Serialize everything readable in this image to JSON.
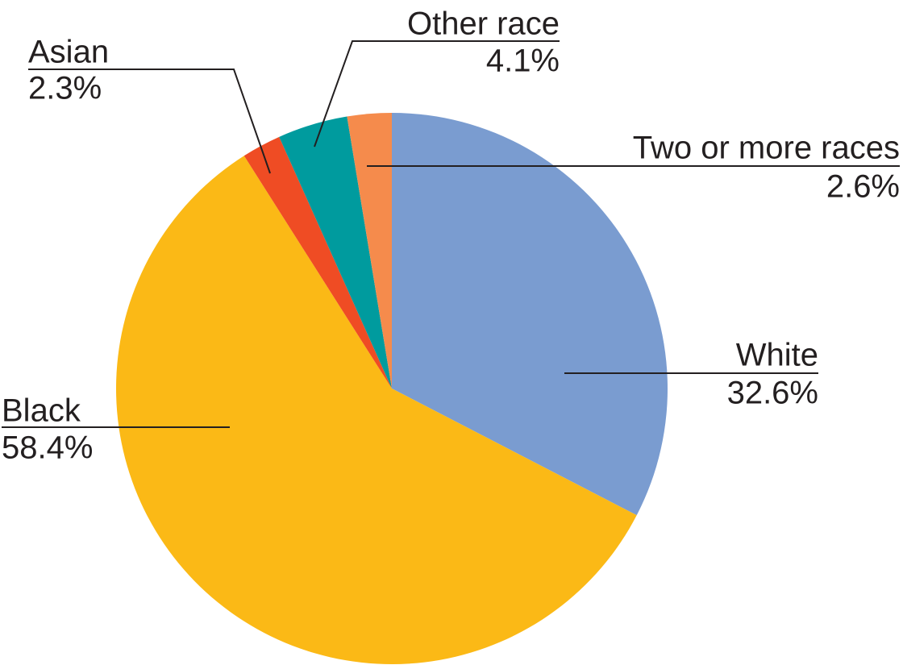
{
  "chart_data": {
    "type": "pie",
    "categories": [
      "White",
      "Black",
      "Asian",
      "Other race",
      "Two or more races"
    ],
    "values": [
      32.6,
      58.4,
      2.3,
      4.1,
      2.6
    ],
    "value_labels": [
      "32.6%",
      "58.4%",
      "2.3%",
      "4.1%",
      "2.6%"
    ],
    "colors": [
      "#7a9cd0",
      "#fbb916",
      "#ef4c24",
      "#009b9e",
      "#f58b4c"
    ]
  }
}
